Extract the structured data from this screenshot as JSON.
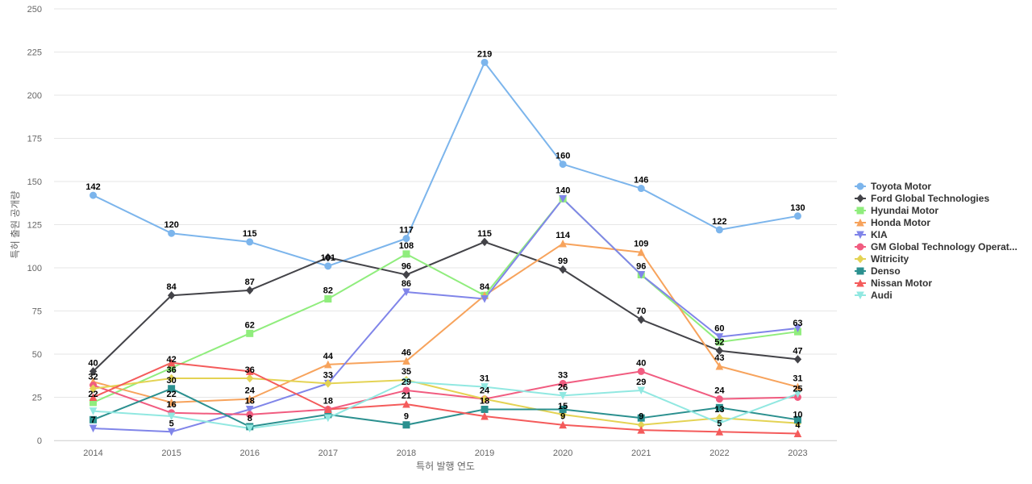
{
  "chart_data": {
    "type": "line",
    "xlabel": "특허 발행 연도",
    "ylabel": "특허 출원 공개량",
    "ylim": [
      0,
      250
    ],
    "yticks": [
      0,
      25,
      50,
      75,
      100,
      125,
      150,
      175,
      200,
      225,
      250
    ],
    "x": [
      "2014",
      "2015",
      "2016",
      "2017",
      "2018",
      "2019",
      "2020",
      "2021",
      "2022",
      "2023"
    ],
    "grid": true,
    "legend_position": "right",
    "series": [
      {
        "name": "Toyota Motor",
        "color": "#7cb5ec",
        "marker": "circle",
        "values": [
          142,
          120,
          115,
          101,
          117,
          219,
          160,
          146,
          122,
          130
        ]
      },
      {
        "name": "Ford Global Technologies",
        "color": "#434348",
        "marker": "diamond",
        "values": [
          40,
          84,
          87,
          106,
          96,
          115,
          99,
          70,
          52,
          47
        ]
      },
      {
        "name": "Hyundai Motor",
        "color": "#90ed7d",
        "marker": "square",
        "values": [
          22,
          42,
          62,
          82,
          108,
          84,
          140,
          96,
          57,
          63
        ]
      },
      {
        "name": "Honda Motor",
        "color": "#f7a35c",
        "marker": "triangle",
        "values": [
          34,
          22,
          24,
          44,
          46,
          84,
          114,
          109,
          43,
          31
        ]
      },
      {
        "name": "KIA",
        "color": "#8085e9",
        "marker": "triangle-down",
        "values": [
          7,
          5,
          18,
          33,
          86,
          82,
          140,
          96,
          60,
          65
        ]
      },
      {
        "name": "GM Global Technology Operat...",
        "color": "#f15c80",
        "marker": "circle",
        "values": [
          32,
          16,
          15,
          18,
          29,
          24,
          33,
          40,
          24,
          25
        ]
      },
      {
        "name": "Witricity",
        "color": "#e4d354",
        "marker": "diamond",
        "values": [
          30,
          36,
          36,
          33,
          35,
          24,
          15,
          9,
          13,
          10
        ]
      },
      {
        "name": "Denso",
        "color": "#2b908f",
        "marker": "square",
        "values": [
          12,
          30,
          8,
          15,
          9,
          18,
          18,
          13,
          19,
          12
        ]
      },
      {
        "name": "Nissan Motor",
        "color": "#f45b5b",
        "marker": "triangle",
        "values": [
          25,
          45,
          40,
          18,
          21,
          14,
          9,
          6,
          5,
          4
        ]
      },
      {
        "name": "Audi",
        "color": "#91e8e1",
        "marker": "triangle-down",
        "values": [
          17,
          14,
          7,
          13,
          34,
          31,
          26,
          29,
          10,
          27
        ]
      }
    ],
    "data_labels": [
      {
        "x": "2014",
        "text": "142"
      },
      {
        "x": "2015",
        "text": "120"
      },
      {
        "x": "2016",
        "text": "115"
      },
      {
        "x": "2017",
        "text": "101"
      },
      {
        "x": "2018",
        "text": "117"
      },
      {
        "x": "2019",
        "text": "219"
      },
      {
        "x": "2020",
        "text": "160"
      },
      {
        "x": "2021",
        "text": "146"
      },
      {
        "x": "2022",
        "text": "122"
      },
      {
        "x": "2023",
        "text": "130"
      },
      {
        "x": "2015",
        "text": "84"
      },
      {
        "x": "2016",
        "text": "87"
      },
      {
        "x": "2018",
        "text": "96"
      },
      {
        "x": "2019",
        "text": "115"
      },
      {
        "x": "2020",
        "text": "99"
      },
      {
        "x": "2021",
        "text": "70"
      },
      {
        "x": "2022",
        "text": "52"
      },
      {
        "x": "2023",
        "text": "47"
      },
      {
        "x": "2016",
        "text": "62"
      },
      {
        "x": "2017",
        "text": "82"
      },
      {
        "x": "2018",
        "text": "108"
      },
      {
        "x": "2019",
        "text": "84"
      },
      {
        "x": "2020",
        "text": "140"
      },
      {
        "x": "2021",
        "text": "96"
      },
      {
        "x": "2022",
        "text": "60"
      },
      {
        "x": "2023",
        "text": "63"
      },
      {
        "x": "2017",
        "text": "44"
      },
      {
        "x": "2018",
        "text": "46"
      },
      {
        "x": "2020",
        "text": "114"
      },
      {
        "x": "2021",
        "text": "109"
      },
      {
        "x": "2022",
        "text": "43"
      },
      {
        "x": "2023",
        "text": "31"
      },
      {
        "x": "2014",
        "text": "40"
      },
      {
        "x": "2014",
        "text": "32"
      },
      {
        "x": "2014",
        "text": "22"
      },
      {
        "x": "2014",
        "text": "7"
      },
      {
        "x": "2015",
        "text": "42"
      },
      {
        "x": "2015",
        "text": "36"
      },
      {
        "x": "2015",
        "text": "30"
      },
      {
        "x": "2015",
        "text": "22"
      },
      {
        "x": "2015",
        "text": "16"
      },
      {
        "x": "2015",
        "text": "5"
      },
      {
        "x": "2016",
        "text": "36"
      },
      {
        "x": "2016",
        "text": "24"
      },
      {
        "x": "2016",
        "text": "18"
      },
      {
        "x": "2016",
        "text": "8"
      },
      {
        "x": "2017",
        "text": "33"
      },
      {
        "x": "2017",
        "text": "18"
      },
      {
        "x": "2018",
        "text": "86"
      },
      {
        "x": "2018",
        "text": "35"
      },
      {
        "x": "2018",
        "text": "29"
      },
      {
        "x": "2018",
        "text": "21"
      },
      {
        "x": "2018",
        "text": "9"
      },
      {
        "x": "2019",
        "text": "31"
      },
      {
        "x": "2019",
        "text": "24"
      },
      {
        "x": "2019",
        "text": "18"
      },
      {
        "x": "2020",
        "text": "33"
      },
      {
        "x": "2020",
        "text": "26"
      },
      {
        "x": "2020",
        "text": "15"
      },
      {
        "x": "2020",
        "text": "9"
      },
      {
        "x": "2021",
        "text": "40"
      },
      {
        "x": "2021",
        "text": "29"
      },
      {
        "x": "2021",
        "text": "9"
      },
      {
        "x": "2022",
        "text": "24"
      },
      {
        "x": "2022",
        "text": "13"
      },
      {
        "x": "2022",
        "text": "5"
      },
      {
        "x": "2023",
        "text": "25"
      },
      {
        "x": "2023",
        "text": "10"
      },
      {
        "x": "2023",
        "text": "4"
      }
    ]
  }
}
